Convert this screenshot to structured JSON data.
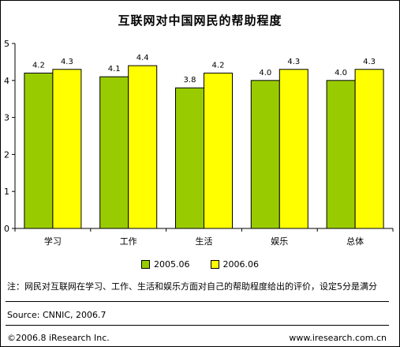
{
  "chart_data": {
    "type": "bar",
    "title": "互联网对中国网民的帮助程度",
    "categories": [
      "学习",
      "工作",
      "生活",
      "娱乐",
      "总体"
    ],
    "series": [
      {
        "name": "2005.06",
        "color": "#99cc00",
        "values": [
          4.2,
          4.1,
          3.8,
          4.0,
          4.0
        ],
        "labels": [
          "4.2",
          "4.1",
          "3.8",
          "4.0",
          "4.0"
        ]
      },
      {
        "name": "2006.06",
        "color": "#ffff00",
        "values": [
          4.3,
          4.4,
          4.2,
          4.3,
          4.3
        ],
        "labels": [
          "4.3",
          "4.4",
          "4.2",
          "4.3",
          "4.3"
        ]
      }
    ],
    "ylim": [
      0,
      5
    ],
    "yticks": [
      0,
      1,
      2,
      3,
      4,
      5
    ],
    "xlabel": "",
    "ylabel": "",
    "grid": false,
    "legend_position": "bottom"
  },
  "note": "注：网民对互联网在学习、工作、生活和娱乐方面对自己的帮助程度给出的评价，设定5分是满分",
  "source": "Source: CNNIC, 2006.7",
  "footer": {
    "copyright": "©2006.8 iResearch Inc.",
    "url": "www.iresearch.com.cn"
  }
}
